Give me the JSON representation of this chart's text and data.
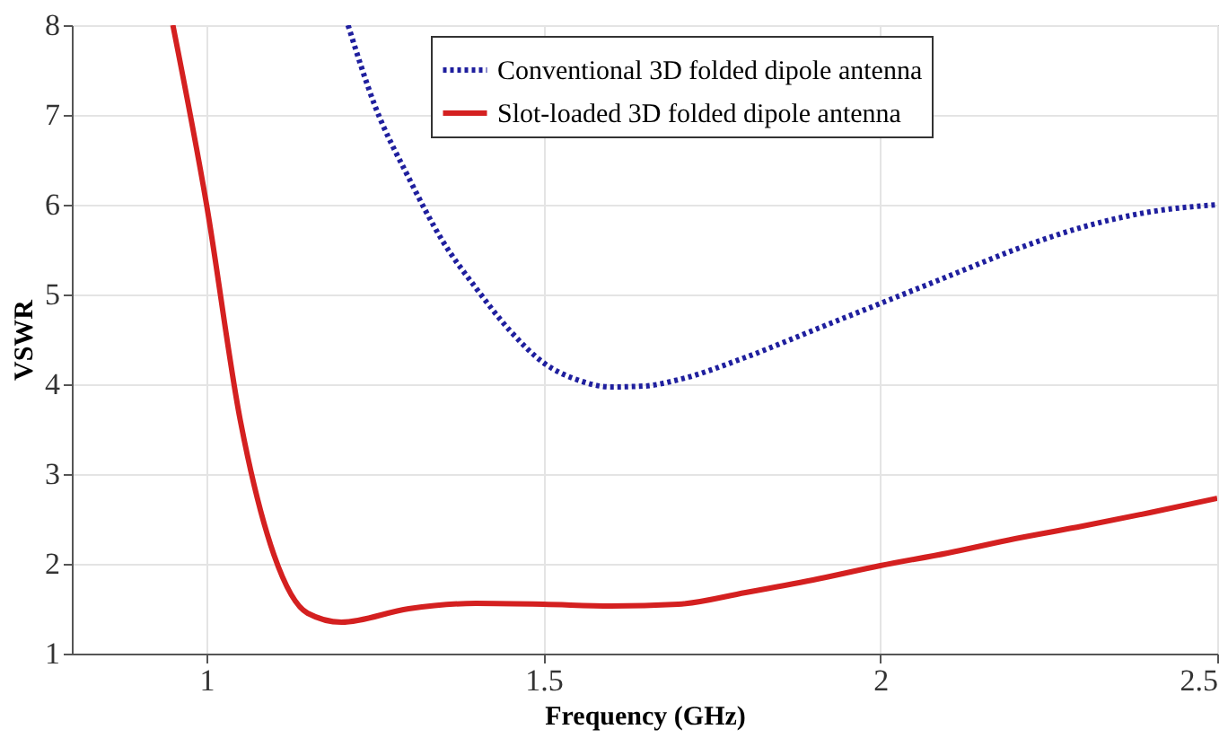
{
  "chart_data": {
    "type": "line",
    "xlabel": "Frequency (GHz)",
    "ylabel": "VSWR",
    "xlim": [
      0.8,
      2.5
    ],
    "xticks": [
      1,
      1.5,
      2,
      2.5
    ],
    "ylim": [
      1,
      8
    ],
    "yticks": [
      1,
      2,
      3,
      4,
      5,
      6,
      7,
      8
    ],
    "grid": true,
    "legend": "top",
    "series": [
      {
        "name": "Conventional 3D folded dipole antenna",
        "color": "#1f1f9e",
        "line_style": "dotted",
        "x": [
          1.21,
          1.25,
          1.3,
          1.35,
          1.4,
          1.45,
          1.5,
          1.55,
          1.6,
          1.65,
          1.7,
          1.8,
          1.9,
          2.0,
          2.1,
          2.2,
          2.3,
          2.4,
          2.5
        ],
        "values": [
          8,
          7.1,
          6.3,
          5.6,
          5.07,
          4.6,
          4.24,
          4.05,
          3.97,
          3.98,
          4.05,
          4.3,
          4.6,
          4.9,
          5.2,
          5.5,
          5.75,
          5.92,
          6.0
        ]
      },
      {
        "name": "Slot-loaded 3D folded dipole antenna",
        "color": "#d42020",
        "line_style": "solid",
        "x": [
          0.95,
          1.0,
          1.05,
          1.1,
          1.15,
          1.2,
          1.3,
          1.4,
          1.5,
          1.6,
          1.7,
          1.8,
          1.9,
          2.0,
          2.1,
          2.2,
          2.3,
          2.4,
          2.5
        ],
        "values": [
          8,
          6.0,
          3.6,
          2.1,
          1.45,
          1.35,
          1.5,
          1.56,
          1.55,
          1.53,
          1.55,
          1.68,
          1.82,
          1.98,
          2.12,
          2.28,
          2.42,
          2.57,
          2.73
        ]
      }
    ]
  }
}
